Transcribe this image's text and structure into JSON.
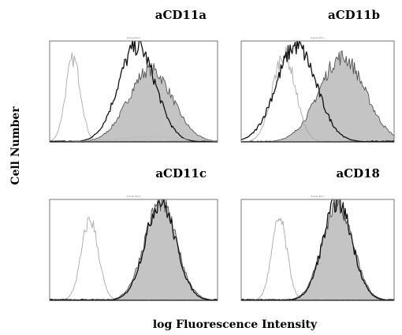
{
  "figure": {
    "ylabel": "Cell Number",
    "xlabel": "log  Fluorescence Intensity"
  },
  "chart_data": [
    {
      "type": "area",
      "title": "aCD11a",
      "subtitle": "Overlay Plot 1",
      "xscale": "log",
      "xlabel": "",
      "ylabel": "",
      "series": [
        {
          "role": "isotype",
          "style": "thin grey outline",
          "peak_x": 0.14,
          "width": 0.045,
          "peak_y": 0.82
        },
        {
          "role": "control",
          "style": "black outline",
          "peak_x": 0.52,
          "width": 0.11,
          "peak_y": 0.95
        },
        {
          "role": "antibody",
          "style": "grey filled",
          "peak_x": 0.6,
          "width": 0.13,
          "peak_y": 0.72
        },
        {
          "role": "shoulder",
          "style": "faint grey",
          "peak_x": 0.6,
          "width": 0.2,
          "peak_y": 0.05
        }
      ]
    },
    {
      "type": "area",
      "title": "aCD11b",
      "subtitle": "Overlay Plot 1",
      "xscale": "log",
      "xlabel": "",
      "ylabel": "",
      "series": [
        {
          "role": "isotype",
          "style": "thin grey outline",
          "peak_x": 0.28,
          "width": 0.075,
          "peak_y": 0.87
        },
        {
          "role": "control",
          "style": "black outline",
          "peak_x": 0.36,
          "width": 0.13,
          "peak_y": 0.95
        },
        {
          "role": "antibody",
          "style": "grey filled",
          "peak_x": 0.66,
          "width": 0.15,
          "peak_y": 0.84
        }
      ]
    },
    {
      "type": "area",
      "title": "aCD11c",
      "subtitle": "Overlay Plot 1",
      "xscale": "log",
      "xlabel": "",
      "ylabel": "",
      "series": [
        {
          "role": "isotype",
          "style": "thin grey outline",
          "peak_x": 0.24,
          "width": 0.05,
          "peak_y": 0.8
        },
        {
          "role": "antibody",
          "style": "grey filled",
          "peak_x": 0.66,
          "width": 0.095,
          "peak_y": 0.97
        },
        {
          "role": "control",
          "style": "black outline",
          "peak_x": 0.66,
          "width": 0.09,
          "peak_y": 0.98
        }
      ]
    },
    {
      "type": "area",
      "title": "aCD18",
      "subtitle": "Overlay Plot 1",
      "xscale": "log",
      "xlabel": "",
      "ylabel": "",
      "series": [
        {
          "role": "isotype",
          "style": "thin grey outline",
          "peak_x": 0.25,
          "width": 0.05,
          "peak_y": 0.8
        },
        {
          "role": "antibody",
          "style": "grey filled",
          "peak_x": 0.63,
          "width": 0.1,
          "peak_y": 0.95
        },
        {
          "role": "control",
          "style": "black outline",
          "peak_x": 0.63,
          "width": 0.095,
          "peak_y": 0.98
        }
      ]
    }
  ]
}
